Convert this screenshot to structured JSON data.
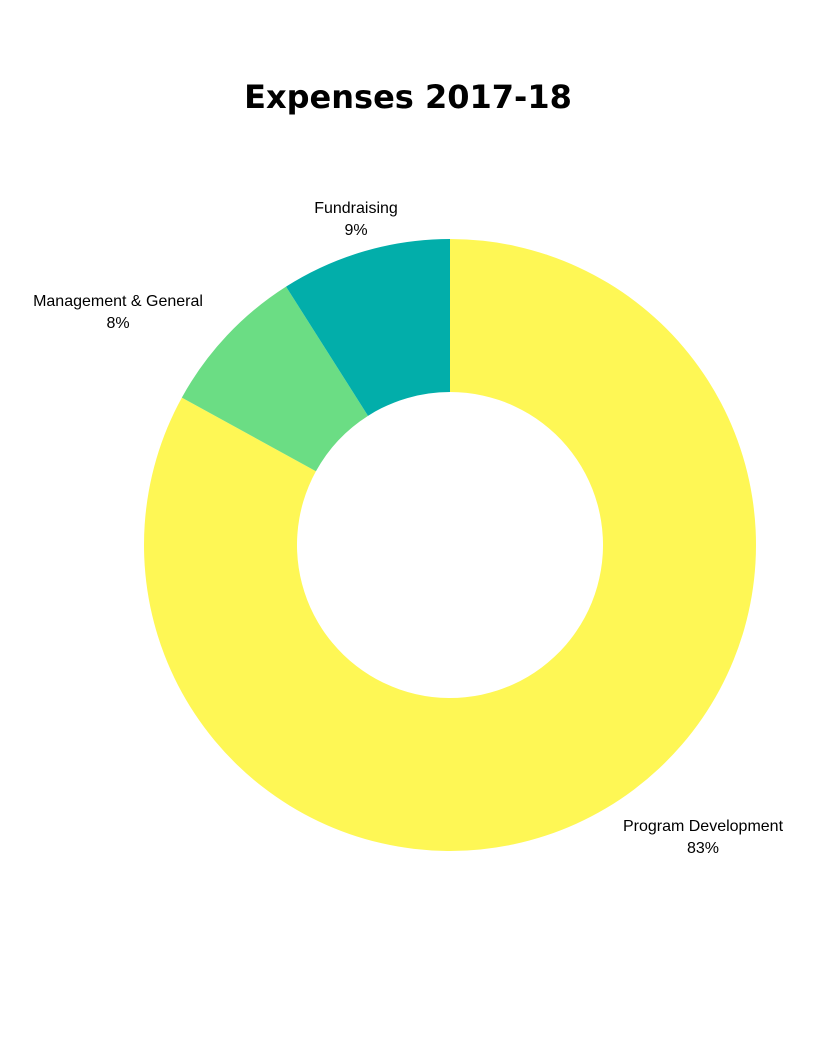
{
  "chart_data": {
    "type": "pie",
    "title": "Expenses 2017-18",
    "donut": true,
    "slices": [
      {
        "label": "Program Development",
        "value": 83,
        "display": "83%",
        "color": "#fef755"
      },
      {
        "label": "Management & General",
        "value": 8,
        "display": "8%",
        "color": "#6bdd84"
      },
      {
        "label": "Fundraising",
        "value": 9,
        "display": "9%",
        "color": "#02aeaa"
      }
    ]
  }
}
